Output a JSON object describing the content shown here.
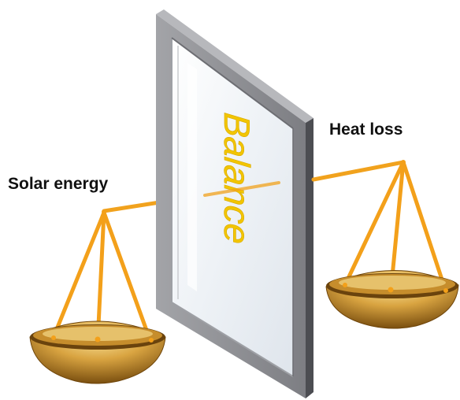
{
  "labels": {
    "solar": "Solar energy",
    "heat": "Heat loss",
    "window_text": "Balance"
  },
  "colors": {
    "background": "#ffffff",
    "frame_front": "#8e8f94",
    "frame_side": "#4c4d52",
    "frame_top": "#b7b8bc",
    "glass": "#f3f6f9",
    "beam": "#f1a21d",
    "pan_outer": "#8a5a12",
    "pan_inner": "#e7c469",
    "window_text": "#f2c500"
  },
  "icons": {
    "left_pan": "balance-pan-icon",
    "right_pan": "balance-pan-icon",
    "window": "window-pane-icon"
  }
}
